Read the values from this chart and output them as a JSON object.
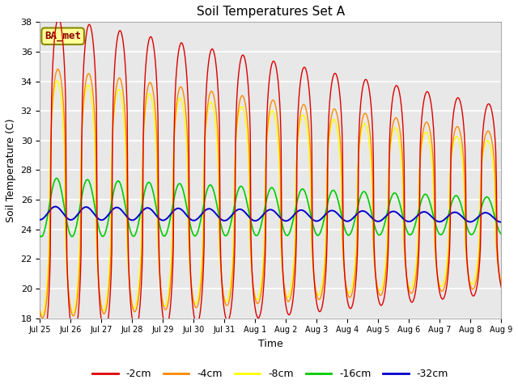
{
  "title": "Soil Temperatures Set A",
  "xlabel": "Time",
  "ylabel": "Soil Temperature (C)",
  "ylim": [
    18,
    38
  ],
  "yticks": [
    18,
    20,
    22,
    24,
    26,
    28,
    30,
    32,
    34,
    36,
    38
  ],
  "colors": {
    "-2cm": "#dd0000",
    "-4cm": "#ff8800",
    "-8cm": "#ffff00",
    "-16cm": "#00cc00",
    "-32cm": "#0000cc"
  },
  "legend_labels": [
    "-2cm",
    "-4cm",
    "-8cm",
    "-16cm",
    "-32cm"
  ],
  "annotation_text": "BA_met",
  "annotation_color": "#880000",
  "annotation_bg": "#ffff99",
  "background_color": "#e8e8e8",
  "grid_color": "#ffffff",
  "xtick_labels": [
    "Jul 25",
    "Jul 26",
    "Jul 27",
    "Jul 28",
    "Jul 29",
    "Jul 30",
    "Jul 31",
    "Aug 1",
    "Aug 2",
    "Aug 3",
    "Aug 4",
    "Aug 5",
    "Aug 6",
    "Aug 7",
    "Aug 8",
    "Aug 9"
  ]
}
